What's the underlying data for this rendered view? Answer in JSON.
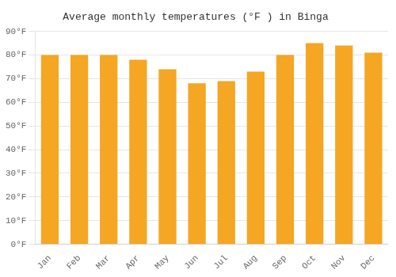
{
  "chart_data": {
    "type": "bar",
    "title": "Average monthly temperatures (°F ) in Binga",
    "categories": [
      "Jan",
      "Feb",
      "Mar",
      "Apr",
      "May",
      "Jun",
      "Jul",
      "Aug",
      "Sep",
      "Oct",
      "Nov",
      "Dec"
    ],
    "values": [
      80,
      80,
      80,
      78,
      74,
      68,
      69,
      73,
      80,
      85,
      84,
      81
    ],
    "color": "#F5A623",
    "ylim": [
      0,
      90
    ],
    "yticks": [
      {
        "value": 0,
        "label": "0°F"
      },
      {
        "value": 10,
        "label": "10°F"
      },
      {
        "value": 20,
        "label": "20°F"
      },
      {
        "value": 30,
        "label": "30°F"
      },
      {
        "value": 40,
        "label": "40°F"
      },
      {
        "value": 50,
        "label": "50°F"
      },
      {
        "value": 60,
        "label": "60°F"
      },
      {
        "value": 70,
        "label": "70°F"
      },
      {
        "value": 80,
        "label": "80°F"
      },
      {
        "value": 90,
        "label": "90°F"
      }
    ],
    "grid": true
  }
}
